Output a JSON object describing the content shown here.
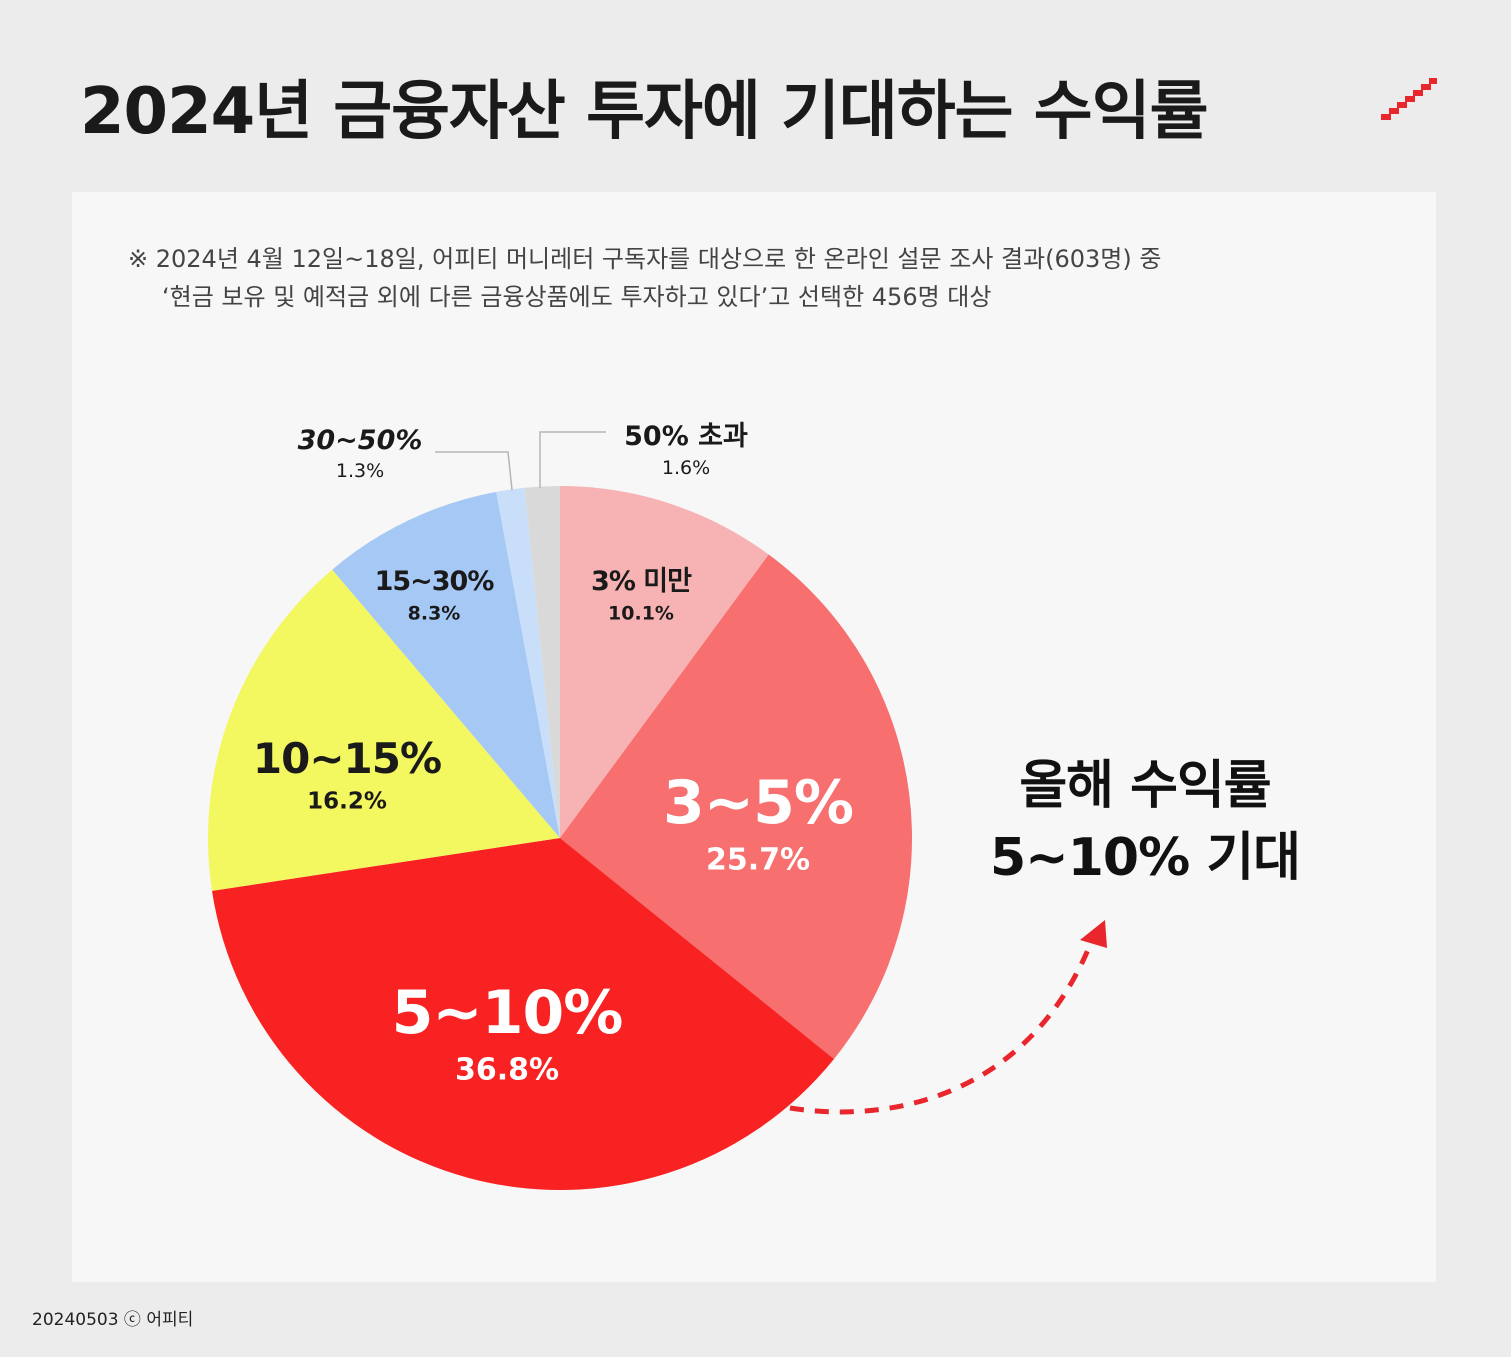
{
  "title": "2024년 금융자산 투자에 기대하는 수익률",
  "note": {
    "line1": "※ 2024년 4월 12일~18일, 어피티 머니레터 구독자를 대상으로 한 온라인 설문 조사 결과(603명) 중",
    "line2": "‘현금 보유 및 예적금 외에 다른 금융상품에도 투자하고 있다’고 선택한 456명 대상"
  },
  "callout": {
    "line1": "올해 수익률",
    "line2": "5~10% 기대"
  },
  "footer": "20240503 ⓒ 어피티",
  "chart_data": {
    "type": "pie",
    "start_angle_deg": 0,
    "direction": "clockwise",
    "slices": [
      {
        "label": "3% 미만",
        "pct_label": "10.1%",
        "value": 10.1,
        "color": "#f7b3b3"
      },
      {
        "label": "3~5%",
        "pct_label": "25.7%",
        "value": 25.7,
        "color": "#f76f6f"
      },
      {
        "label": "5~10%",
        "pct_label": "36.8%",
        "value": 36.8,
        "color": "#f82222"
      },
      {
        "label": "10~15%",
        "pct_label": "16.2%",
        "value": 16.2,
        "color": "#f3f760"
      },
      {
        "label": "15~30%",
        "pct_label": "8.3%",
        "value": 8.3,
        "color": "#a6c8f5"
      },
      {
        "label": "30~50%",
        "pct_label": "1.3%",
        "value": 1.3,
        "color": "#c9dff9"
      },
      {
        "label": "50% 초과",
        "pct_label": "1.6%",
        "value": 1.6,
        "color": "#d9d9d9"
      }
    ]
  }
}
